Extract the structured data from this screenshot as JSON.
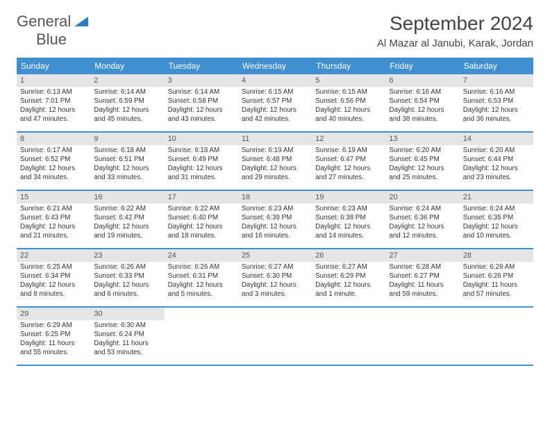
{
  "logo": {
    "primary": "General",
    "secondary": "Blue"
  },
  "title": "September 2024",
  "location": "Al Mazar al Janubi, Karak, Jordan",
  "colors": {
    "header_bg": "#3f8fd1",
    "daynum_bg": "#e6e6e6",
    "rule": "#3f8fd1",
    "logo_blue": "#2b7fc4",
    "text": "#333333"
  },
  "columns": [
    "Sunday",
    "Monday",
    "Tuesday",
    "Wednesday",
    "Thursday",
    "Friday",
    "Saturday"
  ],
  "days": [
    {
      "n": "1",
      "sr": "Sunrise: 6:13 AM",
      "ss": "Sunset: 7:01 PM",
      "d1": "Daylight: 12 hours",
      "d2": "and 47 minutes."
    },
    {
      "n": "2",
      "sr": "Sunrise: 6:14 AM",
      "ss": "Sunset: 6:59 PM",
      "d1": "Daylight: 12 hours",
      "d2": "and 45 minutes."
    },
    {
      "n": "3",
      "sr": "Sunrise: 6:14 AM",
      "ss": "Sunset: 6:58 PM",
      "d1": "Daylight: 12 hours",
      "d2": "and 43 minutes."
    },
    {
      "n": "4",
      "sr": "Sunrise: 6:15 AM",
      "ss": "Sunset: 6:57 PM",
      "d1": "Daylight: 12 hours",
      "d2": "and 42 minutes."
    },
    {
      "n": "5",
      "sr": "Sunrise: 6:15 AM",
      "ss": "Sunset: 6:56 PM",
      "d1": "Daylight: 12 hours",
      "d2": "and 40 minutes."
    },
    {
      "n": "6",
      "sr": "Sunrise: 6:16 AM",
      "ss": "Sunset: 6:54 PM",
      "d1": "Daylight: 12 hours",
      "d2": "and 38 minutes."
    },
    {
      "n": "7",
      "sr": "Sunrise: 6:16 AM",
      "ss": "Sunset: 6:53 PM",
      "d1": "Daylight: 12 hours",
      "d2": "and 36 minutes."
    },
    {
      "n": "8",
      "sr": "Sunrise: 6:17 AM",
      "ss": "Sunset: 6:52 PM",
      "d1": "Daylight: 12 hours",
      "d2": "and 34 minutes."
    },
    {
      "n": "9",
      "sr": "Sunrise: 6:18 AM",
      "ss": "Sunset: 6:51 PM",
      "d1": "Daylight: 12 hours",
      "d2": "and 33 minutes."
    },
    {
      "n": "10",
      "sr": "Sunrise: 6:18 AM",
      "ss": "Sunset: 6:49 PM",
      "d1": "Daylight: 12 hours",
      "d2": "and 31 minutes."
    },
    {
      "n": "11",
      "sr": "Sunrise: 6:19 AM",
      "ss": "Sunset: 6:48 PM",
      "d1": "Daylight: 12 hours",
      "d2": "and 29 minutes."
    },
    {
      "n": "12",
      "sr": "Sunrise: 6:19 AM",
      "ss": "Sunset: 6:47 PM",
      "d1": "Daylight: 12 hours",
      "d2": "and 27 minutes."
    },
    {
      "n": "13",
      "sr": "Sunrise: 6:20 AM",
      "ss": "Sunset: 6:45 PM",
      "d1": "Daylight: 12 hours",
      "d2": "and 25 minutes."
    },
    {
      "n": "14",
      "sr": "Sunrise: 6:20 AM",
      "ss": "Sunset: 6:44 PM",
      "d1": "Daylight: 12 hours",
      "d2": "and 23 minutes."
    },
    {
      "n": "15",
      "sr": "Sunrise: 6:21 AM",
      "ss": "Sunset: 6:43 PM",
      "d1": "Daylight: 12 hours",
      "d2": "and 21 minutes."
    },
    {
      "n": "16",
      "sr": "Sunrise: 6:22 AM",
      "ss": "Sunset: 6:42 PM",
      "d1": "Daylight: 12 hours",
      "d2": "and 19 minutes."
    },
    {
      "n": "17",
      "sr": "Sunrise: 6:22 AM",
      "ss": "Sunset: 6:40 PM",
      "d1": "Daylight: 12 hours",
      "d2": "and 18 minutes."
    },
    {
      "n": "18",
      "sr": "Sunrise: 6:23 AM",
      "ss": "Sunset: 6:39 PM",
      "d1": "Daylight: 12 hours",
      "d2": "and 16 minutes."
    },
    {
      "n": "19",
      "sr": "Sunrise: 6:23 AM",
      "ss": "Sunset: 6:38 PM",
      "d1": "Daylight: 12 hours",
      "d2": "and 14 minutes."
    },
    {
      "n": "20",
      "sr": "Sunrise: 6:24 AM",
      "ss": "Sunset: 6:36 PM",
      "d1": "Daylight: 12 hours",
      "d2": "and 12 minutes."
    },
    {
      "n": "21",
      "sr": "Sunrise: 6:24 AM",
      "ss": "Sunset: 6:35 PM",
      "d1": "Daylight: 12 hours",
      "d2": "and 10 minutes."
    },
    {
      "n": "22",
      "sr": "Sunrise: 6:25 AM",
      "ss": "Sunset: 6:34 PM",
      "d1": "Daylight: 12 hours",
      "d2": "and 8 minutes."
    },
    {
      "n": "23",
      "sr": "Sunrise: 6:26 AM",
      "ss": "Sunset: 6:33 PM",
      "d1": "Daylight: 12 hours",
      "d2": "and 6 minutes."
    },
    {
      "n": "24",
      "sr": "Sunrise: 6:26 AM",
      "ss": "Sunset: 6:31 PM",
      "d1": "Daylight: 12 hours",
      "d2": "and 5 minutes."
    },
    {
      "n": "25",
      "sr": "Sunrise: 6:27 AM",
      "ss": "Sunset: 6:30 PM",
      "d1": "Daylight: 12 hours",
      "d2": "and 3 minutes."
    },
    {
      "n": "26",
      "sr": "Sunrise: 6:27 AM",
      "ss": "Sunset: 6:29 PM",
      "d1": "Daylight: 12 hours",
      "d2": "and 1 minute."
    },
    {
      "n": "27",
      "sr": "Sunrise: 6:28 AM",
      "ss": "Sunset: 6:27 PM",
      "d1": "Daylight: 11 hours",
      "d2": "and 59 minutes."
    },
    {
      "n": "28",
      "sr": "Sunrise: 6:29 AM",
      "ss": "Sunset: 6:26 PM",
      "d1": "Daylight: 11 hours",
      "d2": "and 57 minutes."
    },
    {
      "n": "29",
      "sr": "Sunrise: 6:29 AM",
      "ss": "Sunset: 6:25 PM",
      "d1": "Daylight: 11 hours",
      "d2": "and 55 minutes."
    },
    {
      "n": "30",
      "sr": "Sunrise: 6:30 AM",
      "ss": "Sunset: 6:24 PM",
      "d1": "Daylight: 11 hours",
      "d2": "and 53 minutes."
    }
  ]
}
